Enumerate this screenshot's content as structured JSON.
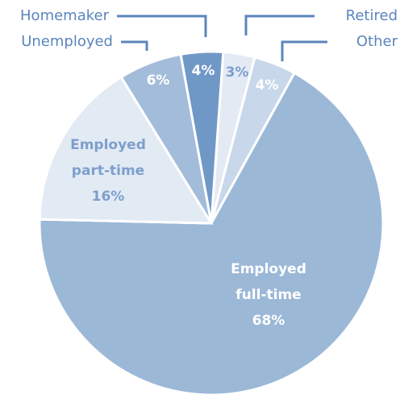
{
  "chart_data": {
    "type": "pie",
    "categories": [
      "Retired",
      "Other",
      "Employed full-time",
      "Employed part-time",
      "Unemployed",
      "Homemaker"
    ],
    "values": [
      3,
      4,
      68,
      16,
      6,
      4
    ],
    "value_labels": [
      "3%",
      "4%",
      "68%",
      "16%",
      "6%",
      "4%"
    ],
    "colors": [
      "#e3eaf4",
      "#c8d7ea",
      "#9cb8d7",
      "#e2eaf4",
      "#a3bcda",
      "#7098c7"
    ]
  }
}
